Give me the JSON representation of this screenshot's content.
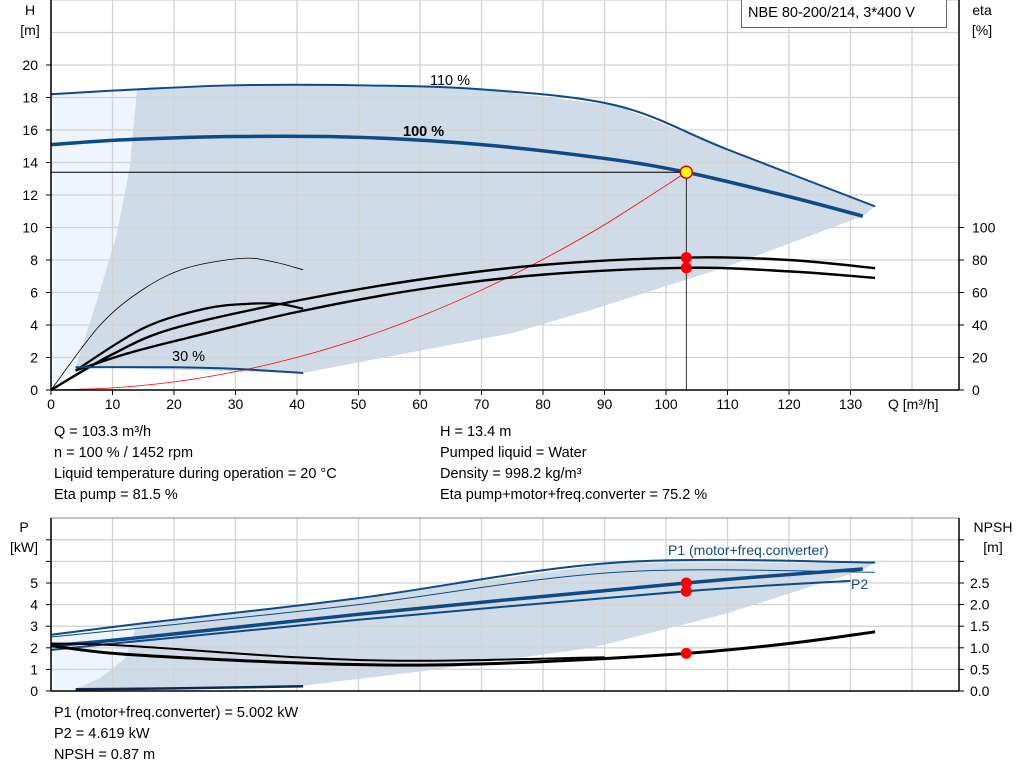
{
  "chart_data": [
    {
      "type": "line",
      "title": "NBE 80-200/214, 3*400 V",
      "xlabel": "Q [m³/h]",
      "ylabel": [
        "H",
        "[m]"
      ],
      "y2label": [
        "eta",
        "[%]"
      ],
      "xlim": [
        0,
        145
      ],
      "ylim": [
        0,
        24
      ],
      "y2lim": [
        0,
        100
      ],
      "grid": true,
      "xticks": [
        0,
        10,
        20,
        30,
        40,
        50,
        60,
        70,
        80,
        90,
        100,
        110,
        120,
        130
      ],
      "yticks": [
        0,
        2,
        4,
        6,
        8,
        10,
        12,
        14,
        16,
        18,
        20
      ],
      "y2ticks": [
        0,
        20,
        40,
        60,
        80,
        100
      ],
      "colors": {
        "pump_curve": "#0e4a85",
        "region": "#cfdbe7",
        "region_light": "#eef5fc",
        "system": "#ff0000",
        "eta": "#000000",
        "duty_point": "#ffff00"
      },
      "series": [
        {
          "name": "110 %",
          "axis": "H",
          "x": [
            0,
            14,
            30,
            50,
            70,
            92,
            110,
            134
          ],
          "y": [
            18.2,
            18.5,
            18.75,
            18.75,
            18.5,
            17.5,
            14.8,
            11.3
          ]
        },
        {
          "name": "100 %",
          "axis": "H",
          "x": [
            0,
            12,
            30,
            50,
            70,
            90,
            103.3,
            120,
            132
          ],
          "y": [
            15.1,
            15.4,
            15.6,
            15.55,
            15.1,
            14.25,
            13.4,
            11.9,
            10.7
          ]
        },
        {
          "name": "30 %",
          "axis": "H",
          "x": [
            4,
            20,
            30,
            41
          ],
          "y": [
            1.4,
            1.4,
            1.3,
            1.05
          ]
        },
        {
          "axis": "eta",
          "x": [
            0,
            10,
            20,
            40,
            60,
            80,
            103.3,
            120,
            134
          ],
          "y": [
            0,
            22,
            38,
            55,
            68,
            77,
            81.5,
            80,
            75
          ]
        },
        {
          "axis": "eta",
          "x": [
            4,
            12,
            20,
            40,
            60,
            80,
            103.3,
            120,
            134
          ],
          "y": [
            12,
            22,
            30,
            48,
            62,
            71,
            75.2,
            73,
            69
          ]
        },
        {
          "axis": "eta",
          "x": [
            0,
            8,
            15,
            22,
            31,
            36,
            41
          ],
          "y": [
            0,
            40,
            62,
            75,
            81,
            79,
            74
          ]
        },
        {
          "axis": "eta",
          "x": [
            4,
            15,
            25,
            32,
            37,
            41
          ],
          "y": [
            12,
            38,
            50,
            53,
            53,
            50
          ]
        }
      ],
      "system_curve": {
        "x": [
          0,
          10,
          20,
          30,
          40,
          50,
          60,
          70,
          80,
          90,
          103.3
        ],
        "y": [
          0,
          0.13,
          0.5,
          1.13,
          2.01,
          3.14,
          4.52,
          6.15,
          8.04,
          10.17,
          13.4
        ]
      },
      "operating_area": {
        "upper": {
          "x": [
            14,
            30,
            50,
            70,
            92,
            110,
            134
          ],
          "y": [
            18.5,
            18.75,
            18.75,
            18.5,
            17.5,
            14.8,
            11.3
          ]
        },
        "lower": {
          "x": [
            132,
            110,
            88,
            75,
            41
          ],
          "y": [
            10.7,
            7.6,
            4.95,
            3.5,
            1.05
          ]
        },
        "left": {
          "x": [
            4,
            8,
            10.7,
            12.8,
            14
          ],
          "y": [
            1.4,
            6.15,
            9.6,
            13.7,
            18.5
          ]
        }
      },
      "duty_point": {
        "Q": 103.3,
        "H": 13.4,
        "eta_pump": 81.5,
        "eta_total": 75.2
      },
      "annotations": [
        "110 %",
        "100 %",
        "30 %"
      ]
    },
    {
      "type": "line",
      "ylabel": [
        "P",
        "[kW]"
      ],
      "y2label": [
        "NPSH",
        "[m]"
      ],
      "xlim": [
        0,
        145
      ],
      "ylim": [
        0,
        8
      ],
      "y2lim": [
        0,
        4
      ],
      "grid": true,
      "yticks": [
        0,
        1,
        2,
        3,
        4,
        5
      ],
      "y2ticks": [
        "0.0",
        "0.5",
        "1.0",
        "1.5",
        "2.0",
        "2.5"
      ],
      "series": [
        {
          "name": "P1 (motor+freq.converter)",
          "axis": "P",
          "x": [
            0,
            14,
            50,
            92,
            134
          ],
          "y": [
            2.6,
            3.1,
            4.3,
            5.95,
            5.95
          ]
        },
        {
          "axis": "P",
          "x": [
            0,
            14,
            50,
            92,
            134
          ],
          "y": [
            2.5,
            2.9,
            4.0,
            5.5,
            5.5
          ]
        },
        {
          "axis": "P",
          "x": [
            0,
            12,
            50,
            103.3,
            132
          ],
          "y": [
            2.1,
            2.4,
            3.55,
            5.0,
            5.65
          ]
        },
        {
          "name": "P2",
          "axis": "P",
          "x": [
            0,
            12,
            50,
            103.3,
            130
          ],
          "y": [
            1.9,
            2.25,
            3.3,
            4.62,
            5.1
          ]
        },
        {
          "axis": "P",
          "x": [
            4,
            20,
            41
          ],
          "y": [
            0.08,
            0.12,
            0.22
          ]
        },
        {
          "axis": "NPSH",
          "x": [
            0,
            12,
            40,
            60,
            80,
            103.3,
            120,
            134
          ],
          "y": [
            1.05,
            0.85,
            0.65,
            0.6,
            0.68,
            0.87,
            1.1,
            1.37
          ]
        },
        {
          "axis": "NPSH",
          "x": [
            0,
            12,
            40,
            60,
            90
          ],
          "y": [
            1.1,
            1.05,
            0.78,
            0.7,
            0.78
          ]
        }
      ],
      "operating_area": {
        "upper": {
          "x": [
            14,
            50,
            92,
            134
          ],
          "y": [
            3.1,
            4.3,
            5.95,
            5.95
          ]
        },
        "lower": {
          "x": [
            132,
            110,
            88,
            60,
            41
          ],
          "y": [
            5.6,
            3.6,
            2.0,
            0.9,
            0.25
          ]
        },
        "left": {
          "x": [
            4,
            8,
            12,
            14
          ],
          "y": [
            0.1,
            0.6,
            1.5,
            3.1
          ]
        }
      },
      "duty_point": {
        "Q": 103.3,
        "P1": 5.002,
        "P2": 4.619,
        "NPSH": 0.87
      },
      "annotations": [
        "P1 (motor+freq.converter)",
        "P2"
      ]
    }
  ],
  "info_top_left": [
    "Q = 103.3 m³/h",
    "n = 100 % / 1452 rpm",
    "Liquid temperature during operation = 20 °C",
    "Eta pump = 81.5 %"
  ],
  "info_top_right": [
    "H = 13.4 m",
    "Pumped liquid = Water",
    "Density = 998.2 kg/m³",
    "Eta pump+motor+freq.converter = 75.2 %"
  ],
  "info_bottom": [
    "P1 (motor+freq.converter) = 5.002 kW",
    "P2 = 4.619 kW",
    "NPSH = 0.87 m"
  ]
}
